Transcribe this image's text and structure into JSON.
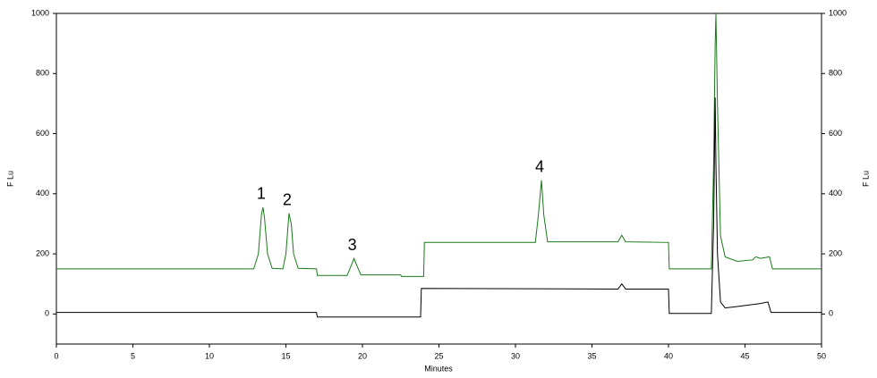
{
  "chart_data": {
    "type": "line",
    "x_label": "Minutes",
    "y_label": "F Lu",
    "y2_label": "F Lu",
    "xlim": [
      0,
      50
    ],
    "xticks": [
      0,
      5,
      10,
      15,
      20,
      25,
      30,
      35,
      40,
      45,
      50
    ],
    "ylim": [
      -100,
      1000
    ],
    "yticks": [
      0,
      200,
      400,
      600,
      800,
      1000
    ],
    "y2lim": [
      -100,
      1000
    ],
    "y2ticks": [
      0,
      200,
      400,
      600,
      800,
      1000
    ],
    "series": [
      {
        "color": "#1a7a1a",
        "x": [
          0,
          12.9,
          13.2,
          13.4,
          13.5,
          13.6,
          13.8,
          14.1,
          14.8,
          15.0,
          15.2,
          15.35,
          15.5,
          15.8,
          17.0,
          17.05,
          19.0,
          19.3,
          19.45,
          19.6,
          19.9,
          22.5,
          22.55,
          24.0,
          24.05,
          31.3,
          31.5,
          31.7,
          31.85,
          32.1,
          36.7,
          36.95,
          37.2,
          40.0,
          40.05,
          42.8,
          42.95,
          43.05,
          43.1,
          43.2,
          43.4,
          43.7,
          44.5,
          45.5,
          45.7,
          46.0,
          46.6,
          46.8,
          50
        ],
        "values": [
          150,
          150,
          200,
          330,
          355,
          320,
          200,
          152,
          150,
          200,
          335,
          300,
          200,
          152,
          150,
          128,
          128,
          165,
          185,
          165,
          130,
          130,
          125,
          125,
          238,
          238,
          330,
          445,
          330,
          240,
          240,
          262,
          240,
          238,
          150,
          150,
          500,
          900,
          1000,
          700,
          260,
          190,
          175,
          180,
          190,
          185,
          190,
          150,
          150
        ]
      },
      {
        "color": "#000000",
        "x": [
          0,
          17.0,
          17.05,
          23.8,
          23.85,
          36.7,
          36.95,
          37.2,
          40.0,
          40.05,
          42.8,
          42.95,
          43.05,
          43.1,
          43.2,
          43.4,
          43.7,
          44.5,
          46.0,
          46.5,
          46.7,
          50
        ],
        "values": [
          5,
          5,
          -10,
          -10,
          85,
          83,
          100,
          83,
          83,
          2,
          2,
          300,
          720,
          500,
          200,
          40,
          20,
          25,
          35,
          40,
          5,
          5
        ]
      }
    ],
    "annotations": [
      {
        "text": "1",
        "x": 13.5,
        "y": 355
      },
      {
        "text": "2",
        "x": 15.2,
        "y": 335
      },
      {
        "text": "3",
        "x": 19.45,
        "y": 185
      },
      {
        "text": "4",
        "x": 31.7,
        "y": 445
      }
    ]
  }
}
